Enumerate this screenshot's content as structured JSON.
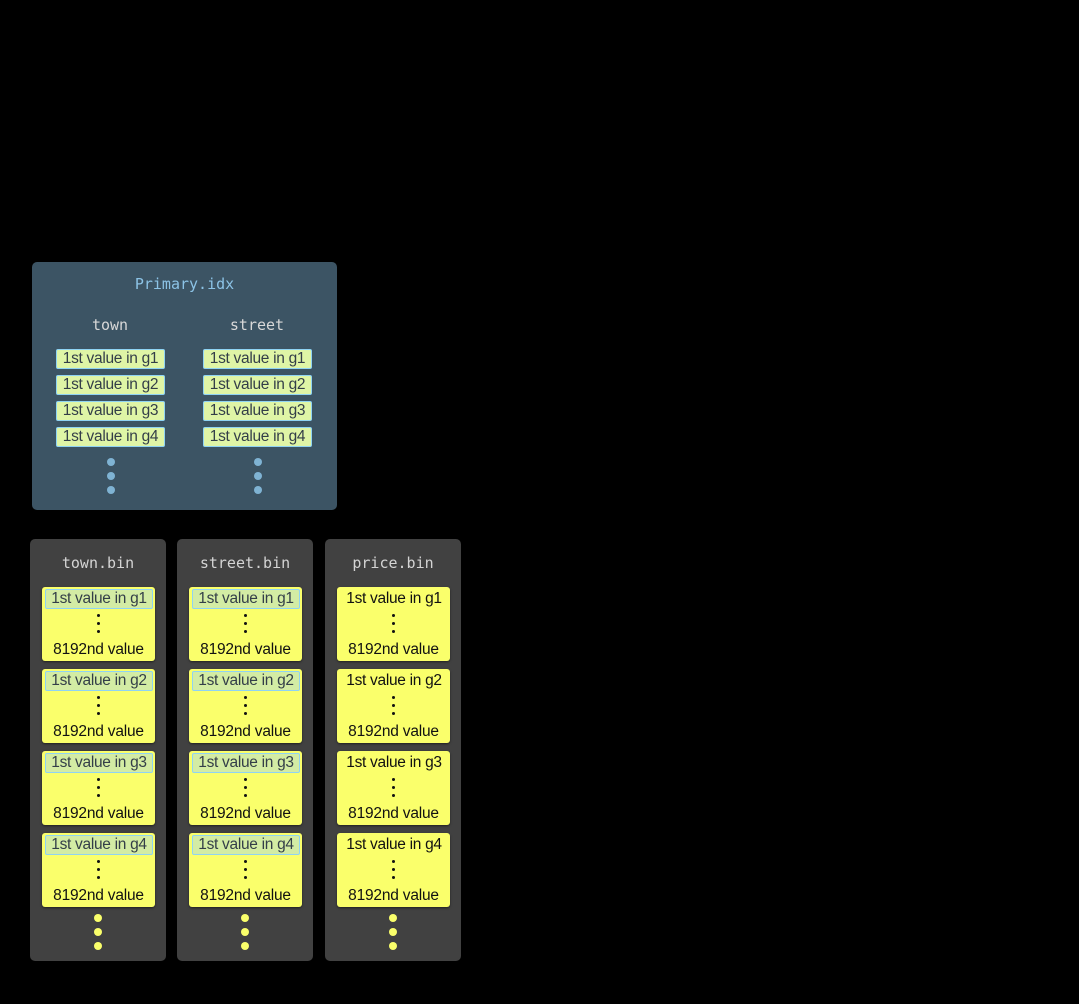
{
  "primary_index": {
    "title": "Primary.idx",
    "columns": [
      {
        "name": "town",
        "entries": [
          "1st value in g1",
          "1st value in g2",
          "1st value in g3",
          "1st value in g4"
        ]
      },
      {
        "name": "street",
        "entries": [
          "1st value in g1",
          "1st value in g2",
          "1st value in g3",
          "1st value in g4"
        ]
      }
    ]
  },
  "bin_files": [
    {
      "title": "town.bin",
      "in_primary_key": true,
      "granules": [
        {
          "first": "1st value in g1",
          "last": "8192nd value"
        },
        {
          "first": "1st value in g2",
          "last": "8192nd value"
        },
        {
          "first": "1st value in g3",
          "last": "8192nd value"
        },
        {
          "first": "1st value in g4",
          "last": "8192nd value"
        }
      ]
    },
    {
      "title": "street.bin",
      "in_primary_key": true,
      "granules": [
        {
          "first": "1st value in g1",
          "last": "8192nd value"
        },
        {
          "first": "1st value in g2",
          "last": "8192nd value"
        },
        {
          "first": "1st value in g3",
          "last": "8192nd value"
        },
        {
          "first": "1st value in g4",
          "last": "8192nd value"
        }
      ]
    },
    {
      "title": "price.bin",
      "in_primary_key": false,
      "granules": [
        {
          "first": "1st value in g1",
          "last": "8192nd value"
        },
        {
          "first": "1st value in g2",
          "last": "8192nd value"
        },
        {
          "first": "1st value in g3",
          "last": "8192nd value"
        },
        {
          "first": "1st value in g4",
          "last": "8192nd value"
        }
      ]
    }
  ],
  "colors": {
    "index_panel": "#3c5464",
    "bin_panel": "#414141",
    "granule": "#faff6b",
    "index_entry": "#dff5a6",
    "entry_border": "#8fd3f3",
    "index_dots": "#7fb3d3"
  }
}
